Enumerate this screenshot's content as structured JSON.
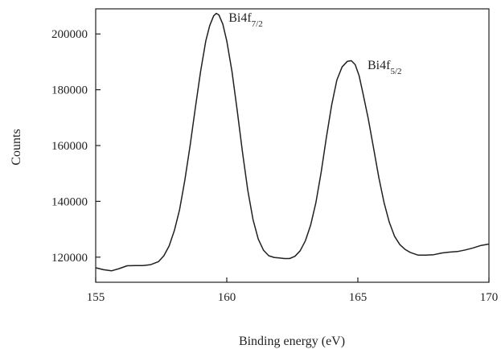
{
  "chart_data": {
    "type": "line",
    "title": "",
    "xlabel": "Binding energy (eV)",
    "ylabel": "Counts",
    "xlim": [
      155,
      170
    ],
    "ylim": [
      111000,
      209000
    ],
    "xticks": [
      155,
      160,
      165,
      170
    ],
    "xtick_labels": [
      "155",
      "160",
      "165",
      "170"
    ],
    "yticks": [
      120000,
      140000,
      160000,
      180000,
      200000
    ],
    "ytick_labels": [
      "120000",
      "140000",
      "160000",
      "180000",
      "200000"
    ],
    "grid": false,
    "legend": "none",
    "line_color": "#231f20",
    "annotations": [
      {
        "base": "Bi4f",
        "sub": "7/2",
        "x": 159.7,
        "y": 205000
      },
      {
        "base": "Bi4f",
        "sub": "5/2",
        "x": 165.0,
        "y": 188000
      }
    ],
    "series": [
      {
        "x": [
          155.0,
          155.3,
          155.6,
          155.9,
          156.2,
          156.5,
          156.8,
          157.1,
          157.4,
          157.6,
          157.8,
          158.0,
          158.2,
          158.4,
          158.6,
          158.8,
          159.0,
          159.2,
          159.35,
          159.5,
          159.6,
          159.7,
          159.85,
          160.0,
          160.2,
          160.4,
          160.6,
          160.8,
          161.0,
          161.2,
          161.4,
          161.6,
          161.8,
          162.0,
          162.2,
          162.4,
          162.6,
          162.8,
          163.0,
          163.2,
          163.4,
          163.6,
          163.8,
          164.0,
          164.2,
          164.4,
          164.6,
          164.75,
          164.9,
          165.05,
          165.2,
          165.4,
          165.6,
          165.8,
          166.0,
          166.2,
          166.4,
          166.6,
          166.8,
          167.0,
          167.3,
          167.6,
          167.9,
          168.2,
          168.5,
          168.8,
          169.1,
          169.4,
          169.7,
          170.0
        ],
        "y": [
          116200,
          115500,
          115100,
          115900,
          116900,
          117000,
          117000,
          117300,
          118400,
          120500,
          124000,
          129500,
          137000,
          147500,
          160000,
          173500,
          186500,
          197500,
          203000,
          206500,
          207400,
          206800,
          203500,
          197500,
          186500,
          172500,
          157500,
          144000,
          133500,
          126500,
          122500,
          120500,
          119900,
          119700,
          119500,
          119500,
          120300,
          122300,
          125900,
          131500,
          139500,
          150500,
          163000,
          174500,
          183500,
          188200,
          190200,
          190400,
          189000,
          185000,
          178500,
          169500,
          159000,
          148500,
          139500,
          132500,
          127500,
          124500,
          122800,
          121700,
          120700,
          120700,
          120900,
          121500,
          121800,
          122000,
          122600,
          123300,
          124200,
          124700
        ]
      }
    ]
  }
}
